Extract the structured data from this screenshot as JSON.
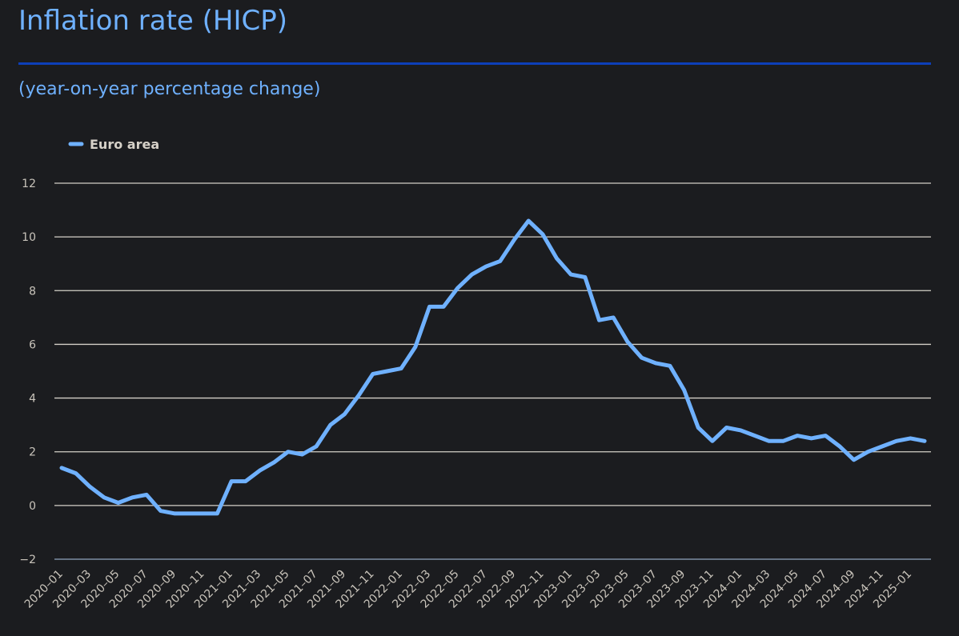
{
  "header": {
    "title": "Inflation rate (HICP)",
    "subtitle": "(year-on-year percentage change)"
  },
  "colors": {
    "series": "#6fb1ff",
    "grid": "#d4d0c8",
    "accent_rule": "#0d3fb8",
    "background": "#1b1c1f"
  },
  "chart_data": {
    "type": "line",
    "title": "Inflation rate (HICP)",
    "subtitle": "(year-on-year percentage change)",
    "xlabel": "",
    "ylabel": "",
    "ylim": [
      -2,
      12
    ],
    "yticks": [
      -2,
      0,
      2,
      4,
      6,
      8,
      10,
      12
    ],
    "grid": true,
    "legend": "top-left",
    "x": [
      "2020-01",
      "2020-02",
      "2020-03",
      "2020-04",
      "2020-05",
      "2020-06",
      "2020-07",
      "2020-08",
      "2020-09",
      "2020-10",
      "2020-11",
      "2020-12",
      "2021-01",
      "2021-02",
      "2021-03",
      "2021-04",
      "2021-05",
      "2021-06",
      "2021-07",
      "2021-08",
      "2021-09",
      "2021-10",
      "2021-11",
      "2021-12",
      "2022-01",
      "2022-02",
      "2022-03",
      "2022-04",
      "2022-05",
      "2022-06",
      "2022-07",
      "2022-08",
      "2022-09",
      "2022-10",
      "2022-11",
      "2022-12",
      "2023-01",
      "2023-02",
      "2023-03",
      "2023-04",
      "2023-05",
      "2023-06",
      "2023-07",
      "2023-08",
      "2023-09",
      "2023-10",
      "2023-11",
      "2023-12",
      "2024-01",
      "2024-02",
      "2024-03",
      "2024-04",
      "2024-05",
      "2024-06",
      "2024-07",
      "2024-08",
      "2024-09",
      "2024-10",
      "2024-11",
      "2024-12",
      "2025-01",
      "2025-02"
    ],
    "xtick_labels": [
      "2020-01",
      "2020-03",
      "2020-05",
      "2020-07",
      "2020-09",
      "2020-11",
      "2021-01",
      "2021-03",
      "2021-05",
      "2021-07",
      "2021-09",
      "2021-11",
      "2022-01",
      "2022-03",
      "2022-05",
      "2022-07",
      "2022-09",
      "2022-11",
      "2023-01",
      "2023-03",
      "2023-05",
      "2023-07",
      "2023-09",
      "2023-11",
      "2024-01",
      "2024-03",
      "2024-05",
      "2024-07",
      "2024-09",
      "2024-11",
      "2025-01"
    ],
    "series": [
      {
        "name": "Euro area",
        "color": "#6fb1ff",
        "values": [
          1.4,
          1.2,
          0.7,
          0.3,
          0.1,
          0.3,
          0.4,
          -0.2,
          -0.3,
          -0.3,
          -0.3,
          -0.3,
          0.9,
          0.9,
          1.3,
          1.6,
          2.0,
          1.9,
          2.2,
          3.0,
          3.4,
          4.1,
          4.9,
          5.0,
          5.1,
          5.9,
          7.4,
          7.4,
          8.1,
          8.6,
          8.9,
          9.1,
          9.9,
          10.6,
          10.1,
          9.2,
          8.6,
          8.5,
          6.9,
          7.0,
          6.1,
          5.5,
          5.3,
          5.2,
          4.3,
          2.9,
          2.4,
          2.9,
          2.8,
          2.6,
          2.4,
          2.4,
          2.6,
          2.5,
          2.6,
          2.2,
          1.7,
          2.0,
          2.2,
          2.4,
          2.5,
          2.4
        ]
      }
    ]
  }
}
